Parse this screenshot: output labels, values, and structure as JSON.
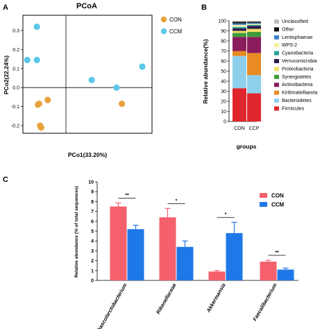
{
  "panels": {
    "a": {
      "letter": "A"
    },
    "b": {
      "letter": "B"
    },
    "c": {
      "letter": "C"
    }
  },
  "colors": {
    "con": "#e8a33d",
    "ccm": "#5bc8ea",
    "bar_con": "#f4606c",
    "bar_ccm": "#1f78e8"
  },
  "chart_data": [
    {
      "type": "scatter",
      "title": "PCoA",
      "xlabel": "PCo1(33.20%)",
      "ylabel": "PCo2(22.24%)",
      "xlim": [
        -0.2,
        0.4
      ],
      "ylim": [
        -0.24,
        0.38
      ],
      "yticks": [
        "0.3",
        "0.2",
        "0.1",
        "0.0",
        "-0.1",
        "-0.2"
      ],
      "grid": false,
      "legend_position": "top-right",
      "series": [
        {
          "name": "CON",
          "color": "#e8a33d",
          "points": [
            [
              -0.13,
              -0.09
            ],
            [
              -0.125,
              -0.085
            ],
            [
              -0.085,
              -0.065
            ],
            [
              -0.12,
              -0.2
            ],
            [
              -0.115,
              -0.21
            ],
            [
              0.26,
              -0.085
            ]
          ]
        },
        {
          "name": "CCM",
          "color": "#5bc8ea",
          "points": [
            [
              -0.135,
              0.32
            ],
            [
              -0.18,
              0.145
            ],
            [
              -0.135,
              0.145
            ],
            [
              0.12,
              0.04
            ],
            [
              0.235,
              0.0
            ],
            [
              0.355,
              0.11
            ]
          ]
        }
      ]
    },
    {
      "type": "bar",
      "stacked": true,
      "xlabel": "groups",
      "ylabel": "Relative abundance(%)",
      "ylim": [
        0,
        100
      ],
      "yticks": [
        "0",
        "10",
        "20",
        "30",
        "40",
        "50",
        "60",
        "70",
        "80",
        "90",
        "100"
      ],
      "categories": [
        "CON",
        "CCP"
      ],
      "legend_position": "right",
      "series": [
        {
          "name": "Firmicutes",
          "color": "#e0262d",
          "values": [
            33,
            28
          ]
        },
        {
          "name": "Bacteroidetes",
          "color": "#8ed0ec",
          "values": [
            32,
            18
          ]
        },
        {
          "name": "Kiritimatiellaeota",
          "color": "#e88b25",
          "values": [
            5,
            22
          ]
        },
        {
          "name": "Actinobacteria",
          "color": "#8a1c5c",
          "values": [
            14,
            16
          ]
        },
        {
          "name": "Synergistetes",
          "color": "#3f9b3c",
          "values": [
            4,
            5
          ]
        },
        {
          "name": "Proteobacteria",
          "color": "#f2e066",
          "values": [
            2,
            3
          ]
        },
        {
          "name": "Verrucomicrobia",
          "color": "#2d1b4e",
          "values": [
            2.5,
            3
          ]
        },
        {
          "name": "Cyanobacteria",
          "color": "#2aa39c",
          "values": [
            1.5,
            1
          ]
        },
        {
          "name": "WPS-2",
          "color": "#f7f0a0",
          "values": [
            2,
            1
          ]
        },
        {
          "name": "Lentisphaerae",
          "color": "#3c7fc4",
          "values": [
            1.5,
            1
          ]
        },
        {
          "name": "Other",
          "color": "#111111",
          "values": [
            1.5,
            1
          ]
        },
        {
          "name": "Unclassified",
          "color": "#bdbdbd",
          "values": [
            1,
            1
          ]
        }
      ]
    },
    {
      "type": "bar",
      "ylabel": "Relative abundance (% of total sequences)",
      "ylim": [
        0,
        10
      ],
      "yticks": [
        "0",
        "1",
        "2",
        "3",
        "4",
        "5",
        "6",
        "7",
        "8",
        "9",
        "10"
      ],
      "categories": [
        "Phascolarctobacterium",
        "Rikenellaceae",
        "Akkermansia",
        "Faecalibacterium"
      ],
      "legend_position": "top-right",
      "significance": [
        "**",
        "*",
        "*",
        "**"
      ],
      "series": [
        {
          "name": "CON",
          "color": "#f4606c",
          "values": [
            7.5,
            6.4,
            0.9,
            1.9
          ],
          "errors": [
            0.35,
            0.9,
            0.1,
            0.15
          ]
        },
        {
          "name": "CCM",
          "color": "#1f78e8",
          "values": [
            5.2,
            3.4,
            4.8,
            1.1
          ],
          "errors": [
            0.4,
            0.6,
            1.1,
            0.15
          ]
        }
      ]
    }
  ]
}
